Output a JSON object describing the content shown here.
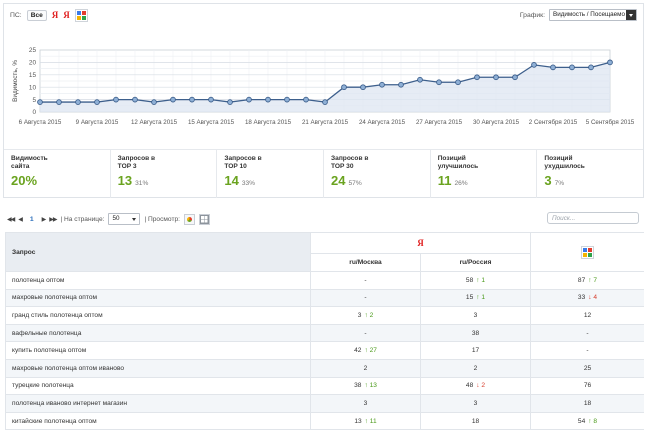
{
  "filter": {
    "label": "ПС:",
    "all": "Все",
    "yandex_glyph": "Я",
    "google_icon": "google-icon"
  },
  "graph": {
    "label": "График:",
    "selected": "Видимость / Посещаемо"
  },
  "chart_data": {
    "type": "line",
    "x_tick_labels": [
      "6 Августа 2015",
      "9 Августа 2015",
      "12 Августа 2015",
      "15 Августа 2015",
      "18 Августа 2015",
      "21 Августа 2015",
      "24 Августа 2015",
      "27 Августа 2015",
      "30 Августа 2015",
      "2 Сентября 2015",
      "5 Сентября 2015"
    ],
    "values": [
      4,
      4,
      4,
      4,
      5,
      5,
      4,
      5,
      5,
      5,
      4,
      5,
      5,
      5,
      5,
      4,
      10,
      10,
      11,
      11,
      13,
      12,
      12,
      14,
      14,
      14,
      19,
      18,
      18,
      18,
      20
    ],
    "ylabel": "Видимость, %",
    "ylim": [
      0,
      25
    ],
    "y_ticks": [
      0,
      5,
      10,
      15,
      20,
      25
    ],
    "grid": true,
    "series_color": "#3d5f8c"
  },
  "stats": [
    {
      "label_1": "Видимость",
      "label_2": "сайта",
      "value": "20%",
      "pct": ""
    },
    {
      "label_1": "Запросов в",
      "label_2": "TOP 3",
      "value": "13",
      "pct": "31%"
    },
    {
      "label_1": "Запросов в",
      "label_2": "TOP 10",
      "value": "14",
      "pct": "33%"
    },
    {
      "label_1": "Запросов в",
      "label_2": "TOP 30",
      "value": "24",
      "pct": "57%"
    },
    {
      "label_1": "Позиций",
      "label_2": "улучшилось",
      "value": "11",
      "pct": "26%"
    },
    {
      "label_1": "Позиций",
      "label_2": "ухудшилось",
      "value": "3",
      "pct": "7%"
    }
  ],
  "toolbar": {
    "first": "◀◀",
    "prev": "◀",
    "page": "1",
    "next": "▶",
    "last": "▶▶",
    "per_page_label": "| На странице:",
    "per_page": "50",
    "view_label": "| Просмотр:",
    "search_placeholder": "Поиск..."
  },
  "table": {
    "query_header": "Запрос",
    "yandex_glyph": "Я",
    "moscow": "ru/Москва",
    "russia": "ru/Россия",
    "google_icon": "google-icon",
    "rows": [
      {
        "query": "полотенца оптом",
        "moscow": {
          "value": "-"
        },
        "russia": {
          "value": "58",
          "trend": "up",
          "delta": "1"
        },
        "google": {
          "value": "87",
          "trend": "up",
          "delta": "7"
        }
      },
      {
        "query": "махровые полотенца оптом",
        "moscow": {
          "value": "-"
        },
        "russia": {
          "value": "15",
          "trend": "up",
          "delta": "1"
        },
        "google": {
          "value": "33",
          "trend": "down",
          "delta": "4"
        }
      },
      {
        "query": "гранд стиль полотенца оптом",
        "moscow": {
          "value": "3",
          "trend": "up",
          "delta": "2"
        },
        "russia": {
          "value": "3"
        },
        "google": {
          "value": "12"
        }
      },
      {
        "query": "вафельные полотенца",
        "moscow": {
          "value": "-"
        },
        "russia": {
          "value": "38"
        },
        "google": {
          "value": "-"
        }
      },
      {
        "query": "купить полотенца оптом",
        "moscow": {
          "value": "42",
          "trend": "up",
          "delta": "27"
        },
        "russia": {
          "value": "17"
        },
        "google": {
          "value": "-"
        }
      },
      {
        "query": "махровые полотенца оптом иваново",
        "moscow": {
          "value": "2"
        },
        "russia": {
          "value": "2"
        },
        "google": {
          "value": "25"
        }
      },
      {
        "query": "турецкие полотенца",
        "moscow": {
          "value": "38",
          "trend": "up",
          "delta": "13"
        },
        "russia": {
          "value": "48",
          "trend": "down",
          "delta": "2"
        },
        "google": {
          "value": "76"
        }
      },
      {
        "query": "полотенца иваново интернет магазин",
        "moscow": {
          "value": "3"
        },
        "russia": {
          "value": "3"
        },
        "google": {
          "value": "18"
        }
      },
      {
        "query": "китайские полотенца оптом",
        "moscow": {
          "value": "13",
          "trend": "up",
          "delta": "11"
        },
        "russia": {
          "value": "18"
        },
        "google": {
          "value": "54",
          "trend": "up",
          "delta": "8"
        }
      }
    ]
  },
  "colors": {
    "accent_green": "#6aa31f",
    "trend_up": "#4a9a1a",
    "trend_down": "#d63b2a",
    "yandex_red": "#e02020",
    "link_blue": "#2a6ebb"
  }
}
